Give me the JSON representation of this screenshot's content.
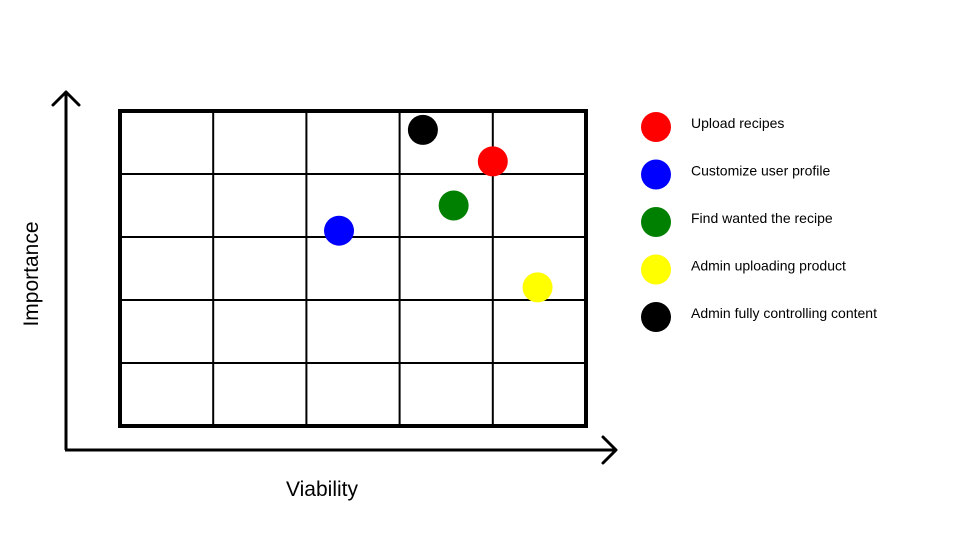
{
  "chart_data": {
    "type": "scatter",
    "title": "",
    "xlabel": "Viability",
    "ylabel": "Importance",
    "xlim": [
      0,
      5
    ],
    "ylim": [
      0,
      5
    ],
    "grid": true,
    "legend_position": "right",
    "series": [
      {
        "name": "Upload recipes",
        "color": "#ff0000",
        "points": [
          {
            "x": 4.0,
            "y": 4.2
          }
        ]
      },
      {
        "name": "Customize user profile",
        "color": "#0000ff",
        "points": [
          {
            "x": 2.35,
            "y": 3.1
          }
        ]
      },
      {
        "name": "Find wanted the recipe",
        "color": "#008000",
        "points": [
          {
            "x": 3.58,
            "y": 3.5
          }
        ]
      },
      {
        "name": "Admin uploading product",
        "color": "#ffff00",
        "points": [
          {
            "x": 4.48,
            "y": 2.2
          }
        ]
      },
      {
        "name": "Admin fully controlling content",
        "color": "#000000",
        "points": [
          {
            "x": 3.25,
            "y": 4.7
          }
        ]
      }
    ]
  }
}
